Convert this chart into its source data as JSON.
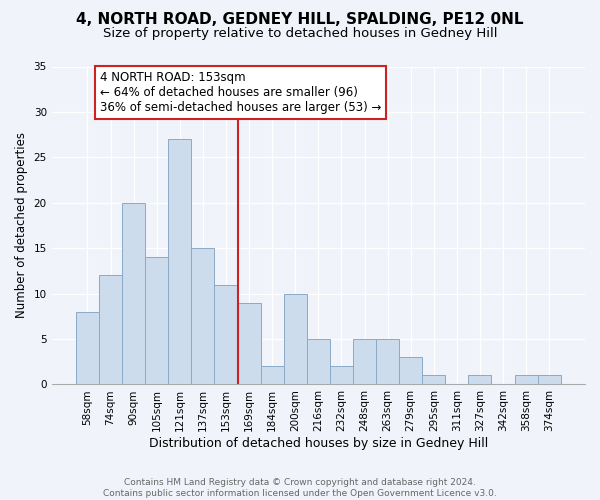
{
  "title1": "4, NORTH ROAD, GEDNEY HILL, SPALDING, PE12 0NL",
  "title2": "Size of property relative to detached houses in Gedney Hill",
  "xlabel": "Distribution of detached houses by size in Gedney Hill",
  "ylabel": "Number of detached properties",
  "categories": [
    "58sqm",
    "74sqm",
    "90sqm",
    "105sqm",
    "121sqm",
    "137sqm",
    "153sqm",
    "169sqm",
    "184sqm",
    "200sqm",
    "216sqm",
    "232sqm",
    "248sqm",
    "263sqm",
    "279sqm",
    "295sqm",
    "311sqm",
    "327sqm",
    "342sqm",
    "358sqm",
    "374sqm"
  ],
  "values": [
    8,
    12,
    20,
    14,
    27,
    15,
    11,
    9,
    2,
    10,
    5,
    2,
    5,
    5,
    3,
    1,
    0,
    1,
    0,
    1,
    1
  ],
  "bar_color": "#cddcec",
  "bar_edge_color": "#8aaac8",
  "highlight_index": 6,
  "vline_color": "#cc2222",
  "annotation_text": "4 NORTH ROAD: 153sqm\n← 64% of detached houses are smaller (96)\n36% of semi-detached houses are larger (53) →",
  "annotation_box_color": "white",
  "annotation_box_edge_color": "#cc2222",
  "ylim": [
    0,
    35
  ],
  "yticks": [
    0,
    5,
    10,
    15,
    20,
    25,
    30,
    35
  ],
  "bg_color": "#f0f4fa",
  "plot_bg_color": "#f0f4fa",
  "footer": "Contains HM Land Registry data © Crown copyright and database right 2024.\nContains public sector information licensed under the Open Government Licence v3.0.",
  "title1_fontsize": 11,
  "title2_fontsize": 9.5,
  "xlabel_fontsize": 9,
  "ylabel_fontsize": 8.5,
  "tick_fontsize": 7.5,
  "annotation_fontsize": 8.5
}
